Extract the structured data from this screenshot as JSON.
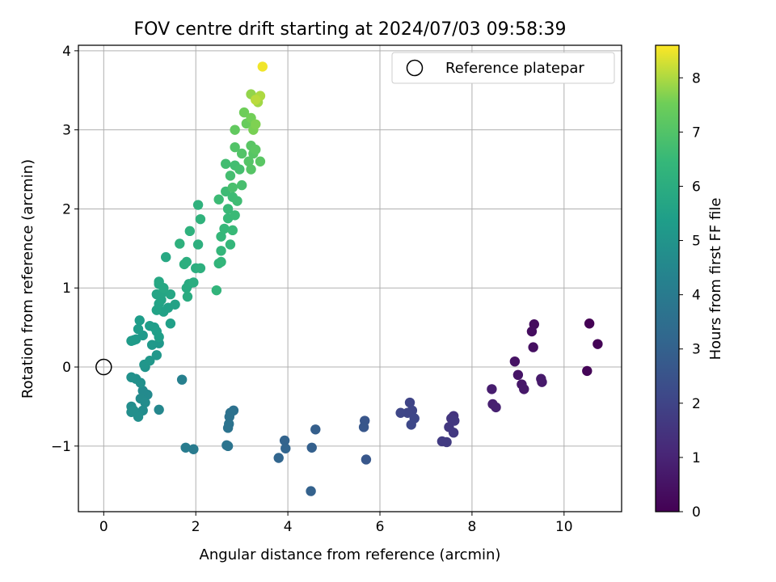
{
  "chart_data": {
    "type": "scatter",
    "title": "FOV centre drift starting at 2024/07/03 09:58:39",
    "xlabel": "Angular distance from reference (arcmin)",
    "ylabel": "Rotation from reference (arcmin)",
    "xlim": [
      -0.55,
      11.25
    ],
    "ylim": [
      -1.83,
      4.07
    ],
    "xticks": [
      0,
      2,
      4,
      6,
      8,
      10
    ],
    "yticks": [
      -1,
      0,
      1,
      2,
      3,
      4
    ],
    "xtick_labels": [
      "0",
      "2",
      "4",
      "6",
      "8",
      "10"
    ],
    "ytick_labels": [
      "−1",
      "0",
      "1",
      "2",
      "3",
      "4"
    ],
    "grid": true,
    "legend": {
      "position": "upper-right",
      "entries": [
        "Reference platepar"
      ]
    },
    "reference_point": {
      "x": 0,
      "y": 0,
      "label": "Reference platepar"
    },
    "colorbar": {
      "label": "Hours from first FF file",
      "range": [
        0,
        8.6
      ],
      "ticks": [
        0,
        1,
        2,
        3,
        4,
        5,
        6,
        7,
        8
      ],
      "tick_labels": [
        "0",
        "1",
        "2",
        "3",
        "4",
        "5",
        "6",
        "7",
        "8"
      ],
      "colormap": "viridis"
    },
    "points": [
      [
        10.55,
        0.55,
        0.0
      ],
      [
        10.73,
        0.29,
        0.05
      ],
      [
        10.5,
        -0.05,
        0.1
      ],
      [
        9.35,
        0.54,
        0.3
      ],
      [
        9.3,
        0.45,
        0.35
      ],
      [
        9.33,
        0.25,
        0.4
      ],
      [
        8.93,
        0.07,
        0.5
      ],
      [
        9.0,
        -0.1,
        0.55
      ],
      [
        9.08,
        -0.22,
        0.6
      ],
      [
        9.13,
        -0.28,
        0.65
      ],
      [
        9.5,
        -0.15,
        0.7
      ],
      [
        9.52,
        -0.19,
        0.72
      ],
      [
        8.43,
        -0.28,
        0.8
      ],
      [
        8.45,
        -0.47,
        0.85
      ],
      [
        8.52,
        -0.51,
        0.9
      ],
      [
        7.6,
        -0.62,
        1.5
      ],
      [
        7.55,
        -0.65,
        1.55
      ],
      [
        7.62,
        -0.68,
        1.6
      ],
      [
        7.5,
        -0.76,
        1.62
      ],
      [
        7.6,
        -0.83,
        1.65
      ],
      [
        7.45,
        -0.95,
        1.7
      ],
      [
        7.35,
        -0.94,
        1.72
      ],
      [
        6.65,
        -0.45,
        2.0
      ],
      [
        6.7,
        -0.55,
        2.02
      ],
      [
        6.6,
        -0.58,
        2.05
      ],
      [
        6.45,
        -0.58,
        2.08
      ],
      [
        6.75,
        -0.65,
        2.1
      ],
      [
        6.68,
        -0.73,
        2.12
      ],
      [
        5.67,
        -0.68,
        2.6
      ],
      [
        5.65,
        -0.76,
        2.62
      ],
      [
        5.7,
        -1.17,
        2.65
      ],
      [
        4.6,
        -0.79,
        2.9
      ],
      [
        4.52,
        -1.02,
        2.95
      ],
      [
        4.5,
        -1.57,
        3.0
      ],
      [
        3.93,
        -0.93,
        3.1
      ],
      [
        3.95,
        -1.03,
        3.12
      ],
      [
        3.8,
        -1.15,
        3.15
      ],
      [
        2.82,
        -0.55,
        3.6
      ],
      [
        2.75,
        -0.58,
        3.62
      ],
      [
        2.73,
        -0.63,
        3.65
      ],
      [
        2.72,
        -0.72,
        3.68
      ],
      [
        2.7,
        -0.77,
        3.7
      ],
      [
        2.67,
        -0.99,
        3.72
      ],
      [
        2.7,
        -1.0,
        3.74
      ],
      [
        1.95,
        -1.04,
        4.0
      ],
      [
        1.78,
        -1.02,
        4.05
      ],
      [
        1.7,
        -0.16,
        4.2
      ],
      [
        1.2,
        -0.54,
        4.5
      ],
      [
        0.95,
        -0.35,
        4.6
      ],
      [
        0.85,
        -0.3,
        4.62
      ],
      [
        0.8,
        -0.4,
        4.65
      ],
      [
        0.9,
        -0.45,
        4.68
      ],
      [
        0.85,
        -0.55,
        4.7
      ],
      [
        0.75,
        -0.6,
        4.72
      ],
      [
        0.6,
        -0.5,
        4.74
      ],
      [
        0.6,
        -0.57,
        4.76
      ],
      [
        0.65,
        -0.55,
        4.78
      ],
      [
        0.75,
        -0.63,
        4.8
      ],
      [
        0.8,
        -0.2,
        4.82
      ],
      [
        0.7,
        -0.15,
        4.84
      ],
      [
        0.6,
        -0.13,
        4.86
      ],
      [
        0.9,
        0.0,
        5.0
      ],
      [
        0.88,
        0.03,
        5.05
      ],
      [
        1.0,
        0.08,
        5.1
      ],
      [
        1.15,
        0.15,
        5.12
      ],
      [
        1.2,
        0.3,
        5.15
      ],
      [
        1.05,
        0.28,
        5.18
      ],
      [
        0.85,
        0.4,
        5.2
      ],
      [
        0.7,
        0.35,
        5.22
      ],
      [
        0.65,
        0.34,
        5.25
      ],
      [
        0.6,
        0.33,
        5.27
      ],
      [
        0.75,
        0.48,
        5.3
      ],
      [
        0.78,
        0.59,
        5.32
      ],
      [
        1.0,
        0.52,
        5.35
      ],
      [
        1.1,
        0.5,
        5.38
      ],
      [
        1.15,
        0.45,
        5.4
      ],
      [
        1.2,
        0.38,
        5.42
      ],
      [
        1.45,
        0.55,
        5.45
      ],
      [
        1.3,
        0.7,
        5.5
      ],
      [
        1.4,
        0.75,
        5.52
      ],
      [
        1.55,
        0.79,
        5.55
      ],
      [
        1.15,
        0.72,
        5.58
      ],
      [
        1.2,
        0.8,
        5.6
      ],
      [
        1.25,
        0.85,
        5.62
      ],
      [
        1.15,
        0.92,
        5.65
      ],
      [
        1.3,
        0.95,
        5.68
      ],
      [
        1.45,
        0.92,
        5.7
      ],
      [
        1.2,
        1.05,
        5.72
      ],
      [
        1.3,
        1.0,
        5.75
      ],
      [
        1.2,
        1.08,
        5.77
      ],
      [
        1.35,
        1.39,
        5.8
      ],
      [
        1.85,
        1.05,
        5.9
      ],
      [
        1.8,
        1.0,
        5.92
      ],
      [
        1.82,
        0.89,
        5.95
      ],
      [
        1.95,
        1.07,
        6.0
      ],
      [
        2.0,
        1.25,
        6.02
      ],
      [
        1.75,
        1.3,
        6.05
      ],
      [
        1.8,
        1.33,
        6.08
      ],
      [
        2.1,
        1.25,
        6.1
      ],
      [
        2.05,
        1.55,
        6.12
      ],
      [
        1.65,
        1.56,
        6.15
      ],
      [
        1.87,
        1.72,
        6.18
      ],
      [
        2.05,
        2.05,
        6.2
      ],
      [
        2.1,
        1.87,
        6.22
      ],
      [
        2.45,
        0.97,
        6.3
      ],
      [
        2.5,
        1.31,
        6.32
      ],
      [
        2.55,
        1.33,
        6.35
      ],
      [
        2.55,
        1.47,
        6.38
      ],
      [
        2.75,
        1.55,
        6.4
      ],
      [
        2.55,
        1.65,
        6.42
      ],
      [
        2.62,
        1.75,
        6.45
      ],
      [
        2.7,
        1.88,
        6.48
      ],
      [
        2.8,
        1.73,
        6.5
      ],
      [
        2.7,
        2.0,
        6.52
      ],
      [
        2.85,
        1.92,
        6.55
      ],
      [
        2.5,
        2.12,
        6.58
      ],
      [
        2.65,
        2.22,
        6.6
      ],
      [
        2.8,
        2.15,
        6.62
      ],
      [
        2.9,
        2.1,
        6.65
      ],
      [
        2.65,
        2.57,
        6.7
      ],
      [
        2.85,
        2.55,
        6.72
      ],
      [
        2.75,
        2.42,
        6.75
      ],
      [
        2.95,
        2.5,
        6.78
      ],
      [
        3.0,
        2.3,
        6.8
      ],
      [
        2.8,
        2.27,
        6.82
      ],
      [
        2.85,
        2.78,
        7.0
      ],
      [
        3.0,
        2.7,
        7.02
      ],
      [
        3.15,
        2.6,
        7.05
      ],
      [
        3.2,
        2.5,
        7.08
      ],
      [
        3.25,
        2.7,
        7.1
      ],
      [
        3.2,
        2.8,
        7.12
      ],
      [
        3.4,
        2.6,
        7.15
      ],
      [
        3.3,
        2.75,
        7.18
      ],
      [
        2.85,
        3.0,
        7.3
      ],
      [
        3.1,
        3.08,
        7.4
      ],
      [
        3.05,
        3.22,
        7.5
      ],
      [
        3.2,
        3.15,
        7.55
      ],
      [
        3.25,
        3.0,
        7.6
      ],
      [
        3.3,
        3.07,
        7.65
      ],
      [
        3.2,
        3.45,
        7.8
      ],
      [
        3.35,
        3.35,
        7.9
      ],
      [
        3.4,
        3.43,
        8.0
      ],
      [
        3.3,
        3.38,
        8.1
      ],
      [
        3.45,
        3.8,
        8.5
      ]
    ]
  }
}
